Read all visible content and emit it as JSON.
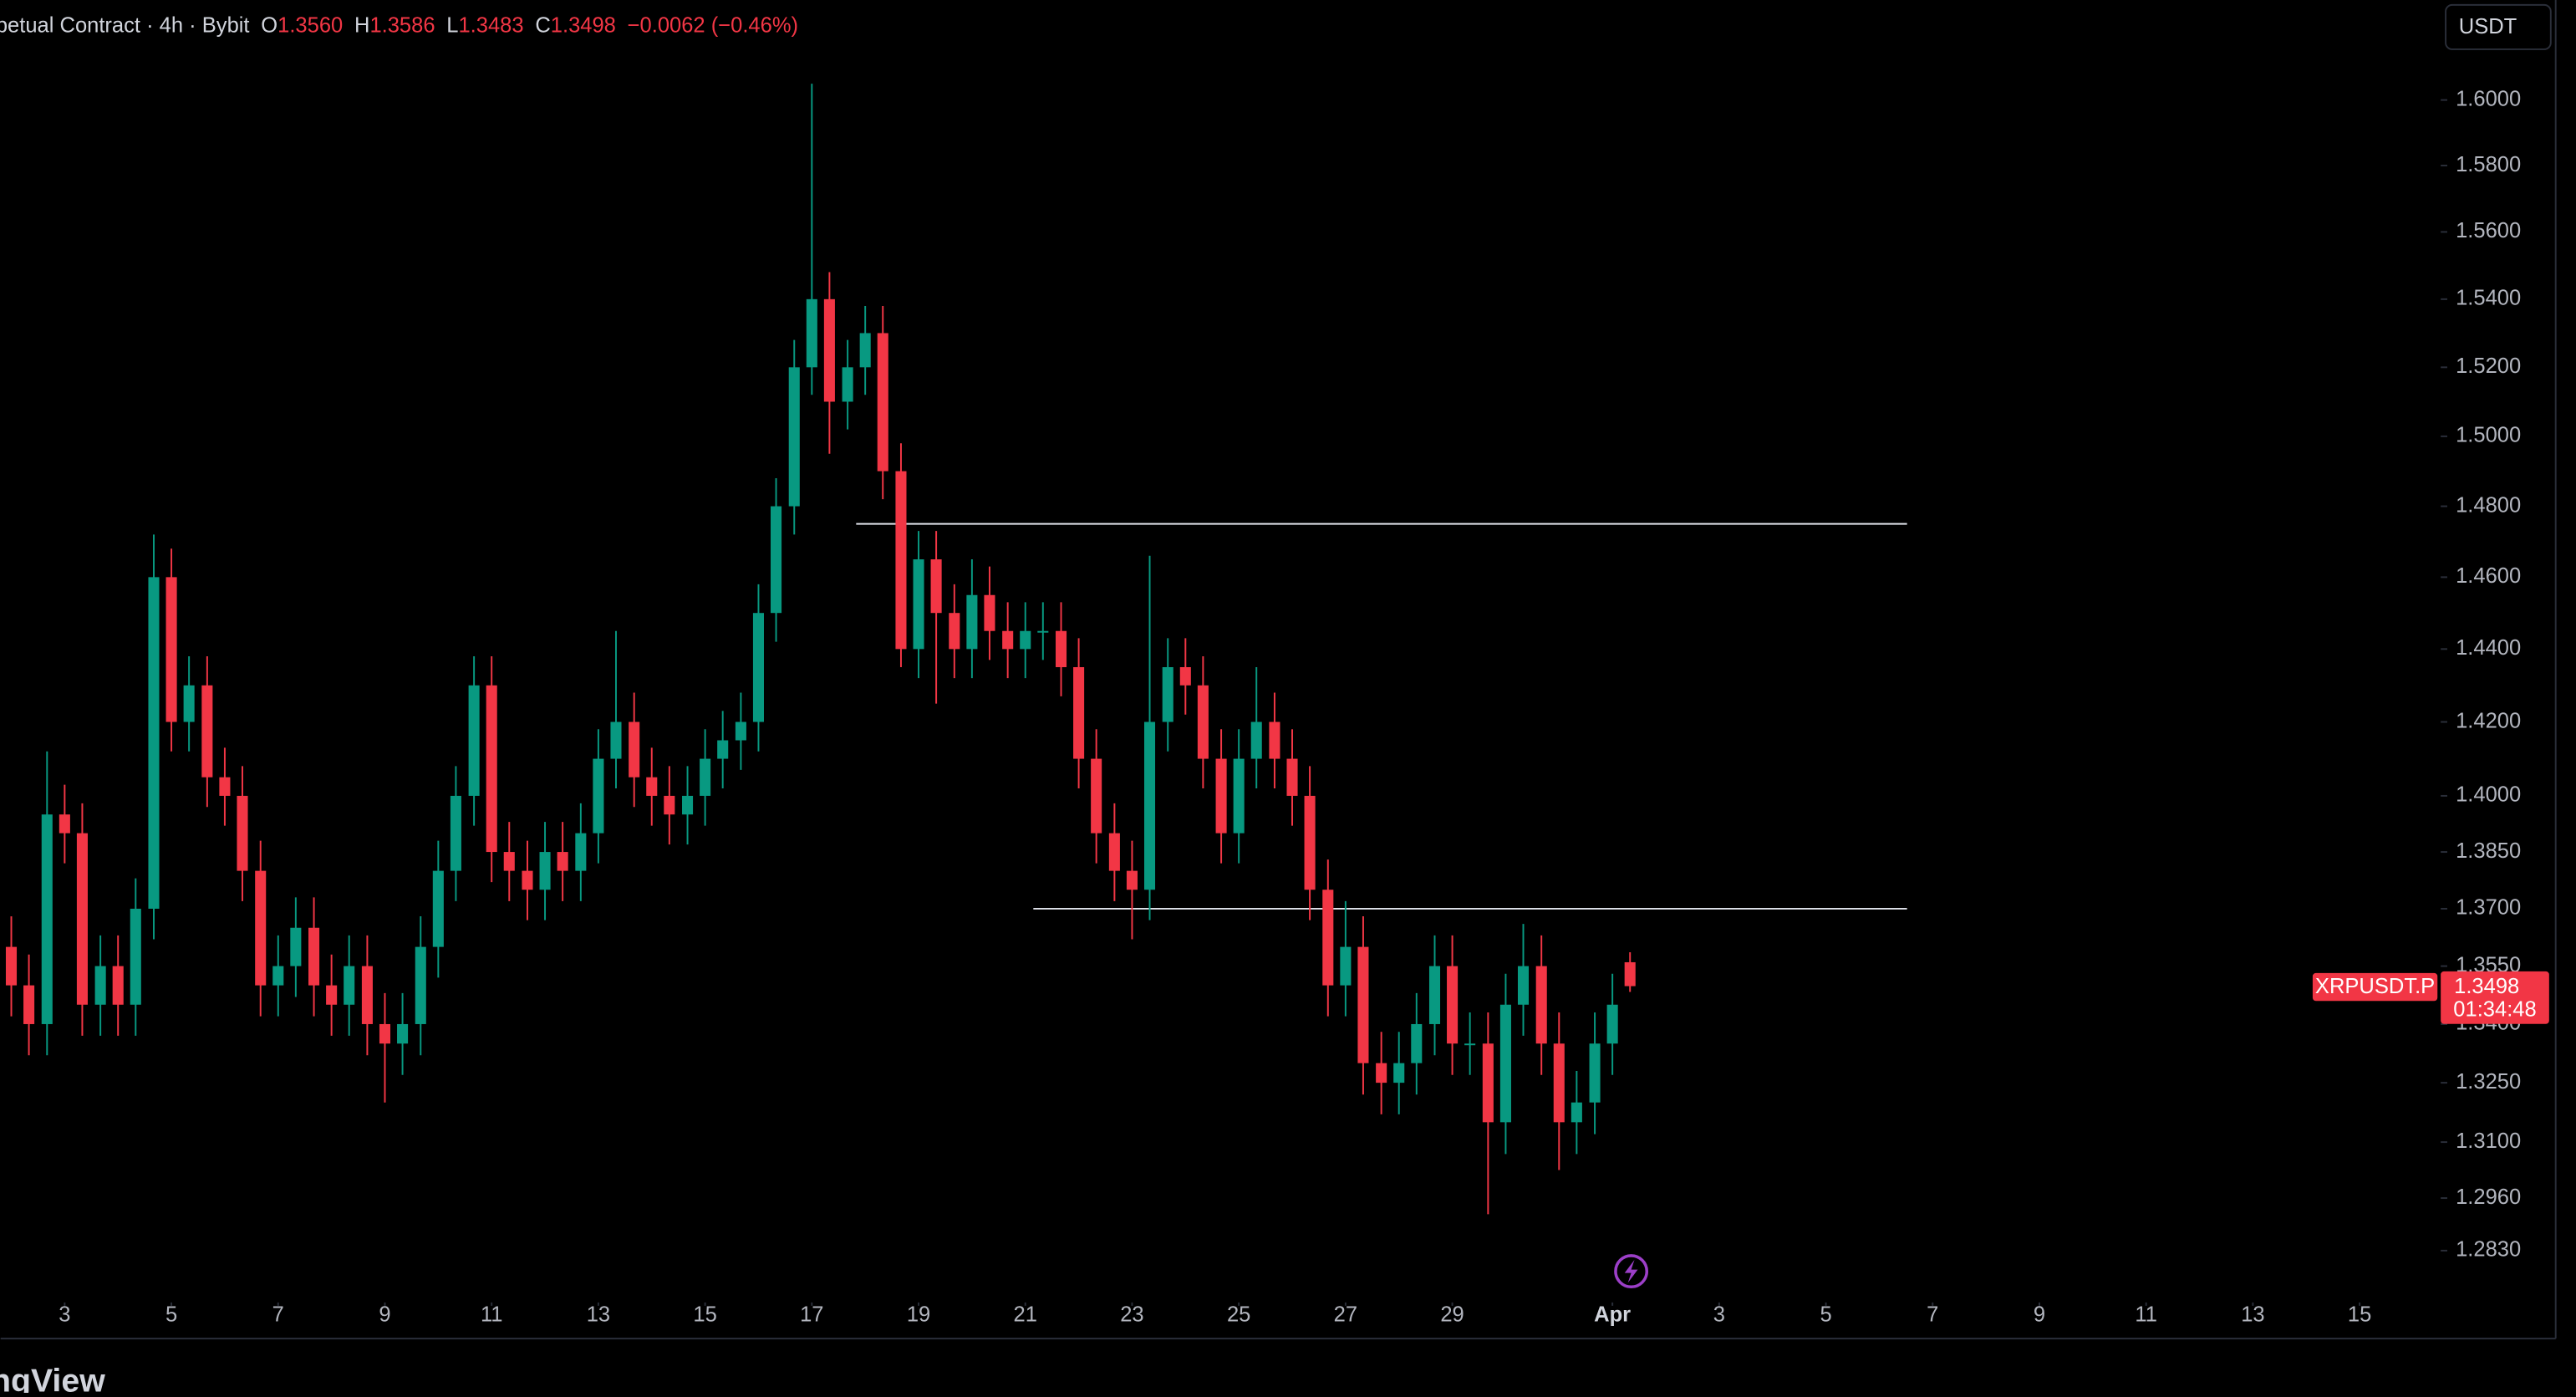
{
  "chart_data": {
    "type": "candlestick",
    "header": {
      "symbol": "petual Contract · 4h · Bybit",
      "fields": [
        {
          "label": "O",
          "value": "1.3560"
        },
        {
          "label": "H",
          "value": "1.3586"
        },
        {
          "label": "L",
          "value": "1.3483"
        },
        {
          "label": "C",
          "value": "1.3498"
        }
      ],
      "change": "−0.0062 (−0.46%)"
    },
    "currency": "USDT",
    "ticker": "XRPUSDT.P",
    "countdown": "01:34:48",
    "brand": "ngView",
    "log_scale": true,
    "up_color": "#089981",
    "down_color": "#f23645",
    "x": [
      2,
      2.33,
      2.67,
      3,
      3.33,
      3.67,
      4,
      4.33,
      4.67,
      5,
      5.33,
      5.67,
      6,
      6.33,
      6.67,
      7,
      7.33,
      7.67,
      8,
      8.33,
      8.67,
      9,
      9.33,
      9.67,
      10,
      10.33,
      10.67,
      11,
      11.33,
      11.67,
      12,
      12.33,
      12.67,
      13,
      13.33,
      13.67,
      14,
      14.33,
      14.67,
      15,
      15.33,
      15.67,
      16,
      16.33,
      16.67,
      17,
      17.33,
      17.67,
      18,
      18.33,
      18.67,
      19,
      19.33,
      19.67,
      20,
      20.33,
      20.67,
      21,
      21.33,
      21.67,
      22,
      22.33,
      22.67,
      23,
      23.33,
      23.67,
      24,
      24.33,
      24.67,
      25,
      25.33,
      25.67,
      26,
      26.33,
      26.67,
      27,
      27.33,
      27.67,
      28,
      28.33,
      28.67,
      29,
      29.33,
      29.67,
      30,
      30.33,
      30.67,
      31,
      31.33,
      31.67,
      32,
      32.33
    ],
    "open": [
      1.36,
      1.35,
      1.34,
      1.395,
      1.39,
      1.345,
      1.355,
      1.345,
      1.37,
      1.46,
      1.42,
      1.43,
      1.405,
      1.4,
      1.38,
      1.35,
      1.355,
      1.365,
      1.35,
      1.345,
      1.355,
      1.34,
      1.335,
      1.34,
      1.36,
      1.38,
      1.4,
      1.43,
      1.385,
      1.38,
      1.375,
      1.385,
      1.38,
      1.39,
      1.41,
      1.42,
      1.405,
      1.4,
      1.395,
      1.4,
      1.41,
      1.415,
      1.42,
      1.45,
      1.48,
      1.52,
      1.54,
      1.51,
      1.52,
      1.53,
      1.49,
      1.44,
      1.465,
      1.45,
      1.44,
      1.455,
      1.445,
      1.44,
      1.445,
      1.445,
      1.435,
      1.41,
      1.39,
      1.38,
      1.375,
      1.42,
      1.435,
      1.43,
      1.41,
      1.39,
      1.41,
      1.42,
      1.41,
      1.4,
      1.375,
      1.35,
      1.36,
      1.33,
      1.325,
      1.33,
      1.34,
      1.355,
      1.335,
      1.335,
      1.315,
      1.345,
      1.355,
      1.335,
      1.315,
      1.32,
      1.335,
      1.356
    ],
    "high": [
      1.368,
      1.358,
      1.412,
      1.403,
      1.398,
      1.363,
      1.363,
      1.378,
      1.472,
      1.468,
      1.438,
      1.438,
      1.413,
      1.408,
      1.388,
      1.363,
      1.373,
      1.373,
      1.358,
      1.363,
      1.363,
      1.348,
      1.348,
      1.368,
      1.388,
      1.408,
      1.438,
      1.438,
      1.393,
      1.388,
      1.393,
      1.393,
      1.398,
      1.418,
      1.445,
      1.428,
      1.413,
      1.408,
      1.408,
      1.418,
      1.423,
      1.428,
      1.458,
      1.488,
      1.528,
      1.605,
      1.548,
      1.528,
      1.538,
      1.538,
      1.498,
      1.473,
      1.473,
      1.458,
      1.465,
      1.463,
      1.453,
      1.453,
      1.453,
      1.453,
      1.443,
      1.418,
      1.398,
      1.388,
      1.466,
      1.443,
      1.443,
      1.438,
      1.418,
      1.418,
      1.435,
      1.428,
      1.418,
      1.408,
      1.383,
      1.372,
      1.368,
      1.338,
      1.338,
      1.348,
      1.363,
      1.363,
      1.343,
      1.343,
      1.353,
      1.366,
      1.363,
      1.343,
      1.328,
      1.343,
      1.353,
      1.3586
    ],
    "low": [
      1.342,
      1.332,
      1.332,
      1.382,
      1.337,
      1.337,
      1.337,
      1.337,
      1.362,
      1.412,
      1.412,
      1.397,
      1.392,
      1.372,
      1.342,
      1.342,
      1.347,
      1.342,
      1.337,
      1.337,
      1.332,
      1.32,
      1.327,
      1.332,
      1.352,
      1.372,
      1.392,
      1.377,
      1.372,
      1.367,
      1.367,
      1.372,
      1.372,
      1.382,
      1.402,
      1.397,
      1.392,
      1.387,
      1.387,
      1.392,
      1.402,
      1.407,
      1.412,
      1.442,
      1.472,
      1.512,
      1.495,
      1.502,
      1.512,
      1.482,
      1.435,
      1.432,
      1.425,
      1.432,
      1.432,
      1.437,
      1.432,
      1.432,
      1.437,
      1.427,
      1.402,
      1.382,
      1.372,
      1.362,
      1.367,
      1.412,
      1.422,
      1.402,
      1.382,
      1.382,
      1.402,
      1.402,
      1.392,
      1.367,
      1.342,
      1.342,
      1.322,
      1.317,
      1.317,
      1.322,
      1.332,
      1.327,
      1.327,
      1.292,
      1.307,
      1.337,
      1.327,
      1.303,
      1.307,
      1.312,
      1.327,
      1.3483
    ],
    "close": [
      1.35,
      1.34,
      1.395,
      1.39,
      1.345,
      1.355,
      1.345,
      1.37,
      1.46,
      1.42,
      1.43,
      1.405,
      1.4,
      1.38,
      1.35,
      1.355,
      1.365,
      1.35,
      1.345,
      1.355,
      1.34,
      1.335,
      1.34,
      1.36,
      1.38,
      1.4,
      1.43,
      1.385,
      1.38,
      1.375,
      1.385,
      1.38,
      1.39,
      1.41,
      1.42,
      1.405,
      1.4,
      1.395,
      1.4,
      1.41,
      1.415,
      1.42,
      1.45,
      1.48,
      1.52,
      1.54,
      1.51,
      1.52,
      1.53,
      1.49,
      1.44,
      1.465,
      1.45,
      1.44,
      1.455,
      1.445,
      1.44,
      1.445,
      1.445,
      1.435,
      1.41,
      1.39,
      1.38,
      1.375,
      1.42,
      1.435,
      1.43,
      1.41,
      1.39,
      1.41,
      1.42,
      1.41,
      1.4,
      1.375,
      1.35,
      1.36,
      1.33,
      1.325,
      1.33,
      1.34,
      1.355,
      1.335,
      1.335,
      1.315,
      1.345,
      1.355,
      1.335,
      1.315,
      1.32,
      1.335,
      1.345,
      1.3498
    ],
    "lines": [
      {
        "y": 1.475,
        "x": [
          17.83,
          37.52
        ]
      },
      {
        "y": 1.37,
        "x": [
          21.15,
          37.52
        ]
      }
    ],
    "xlim": [
      1.8,
      47.52
    ],
    "ylim": [
      1.2735,
      1.631
    ],
    "xticks": [
      3,
      5,
      7,
      9,
      11,
      13,
      15,
      17,
      19,
      21,
      23,
      25,
      27,
      29,
      {
        "value": 32,
        "label": "Apr"
      },
      {
        "value": 34,
        "label": "3"
      },
      {
        "value": 36,
        "label": "5"
      },
      {
        "value": 38,
        "label": "7"
      },
      {
        "value": 40,
        "label": "9"
      },
      {
        "value": 42,
        "label": "11"
      },
      {
        "value": 44,
        "label": "13"
      },
      {
        "value": 46,
        "label": "15"
      }
    ],
    "yticks": [
      {
        "value": 1.6,
        "label": "1.6000"
      },
      {
        "value": 1.58,
        "label": "1.5800"
      },
      {
        "value": 1.56,
        "label": "1.5600"
      },
      {
        "value": 1.54,
        "label": "1.5400"
      },
      {
        "value": 1.52,
        "label": "1.5200"
      },
      {
        "value": 1.5,
        "label": "1.5000"
      },
      {
        "value": 1.48,
        "label": "1.4800"
      },
      {
        "value": 1.46,
        "label": "1.4600"
      },
      {
        "value": 1.44,
        "label": "1.4400"
      },
      {
        "value": 1.42,
        "label": "1.4200"
      },
      {
        "value": 1.4,
        "label": "1.4000"
      },
      {
        "value": 1.385,
        "label": "1.3850"
      },
      {
        "value": 1.37,
        "label": "1.3700"
      },
      {
        "value": 1.355,
        "label": "1.3550"
      },
      {
        "value": 1.34,
        "label": "1.3400"
      },
      {
        "value": 1.325,
        "label": "1.3250"
      },
      {
        "value": 1.31,
        "label": "1.3100"
      },
      {
        "value": 1.296,
        "label": "1.2960"
      },
      {
        "value": 1.283,
        "label": "1.2830"
      }
    ]
  }
}
